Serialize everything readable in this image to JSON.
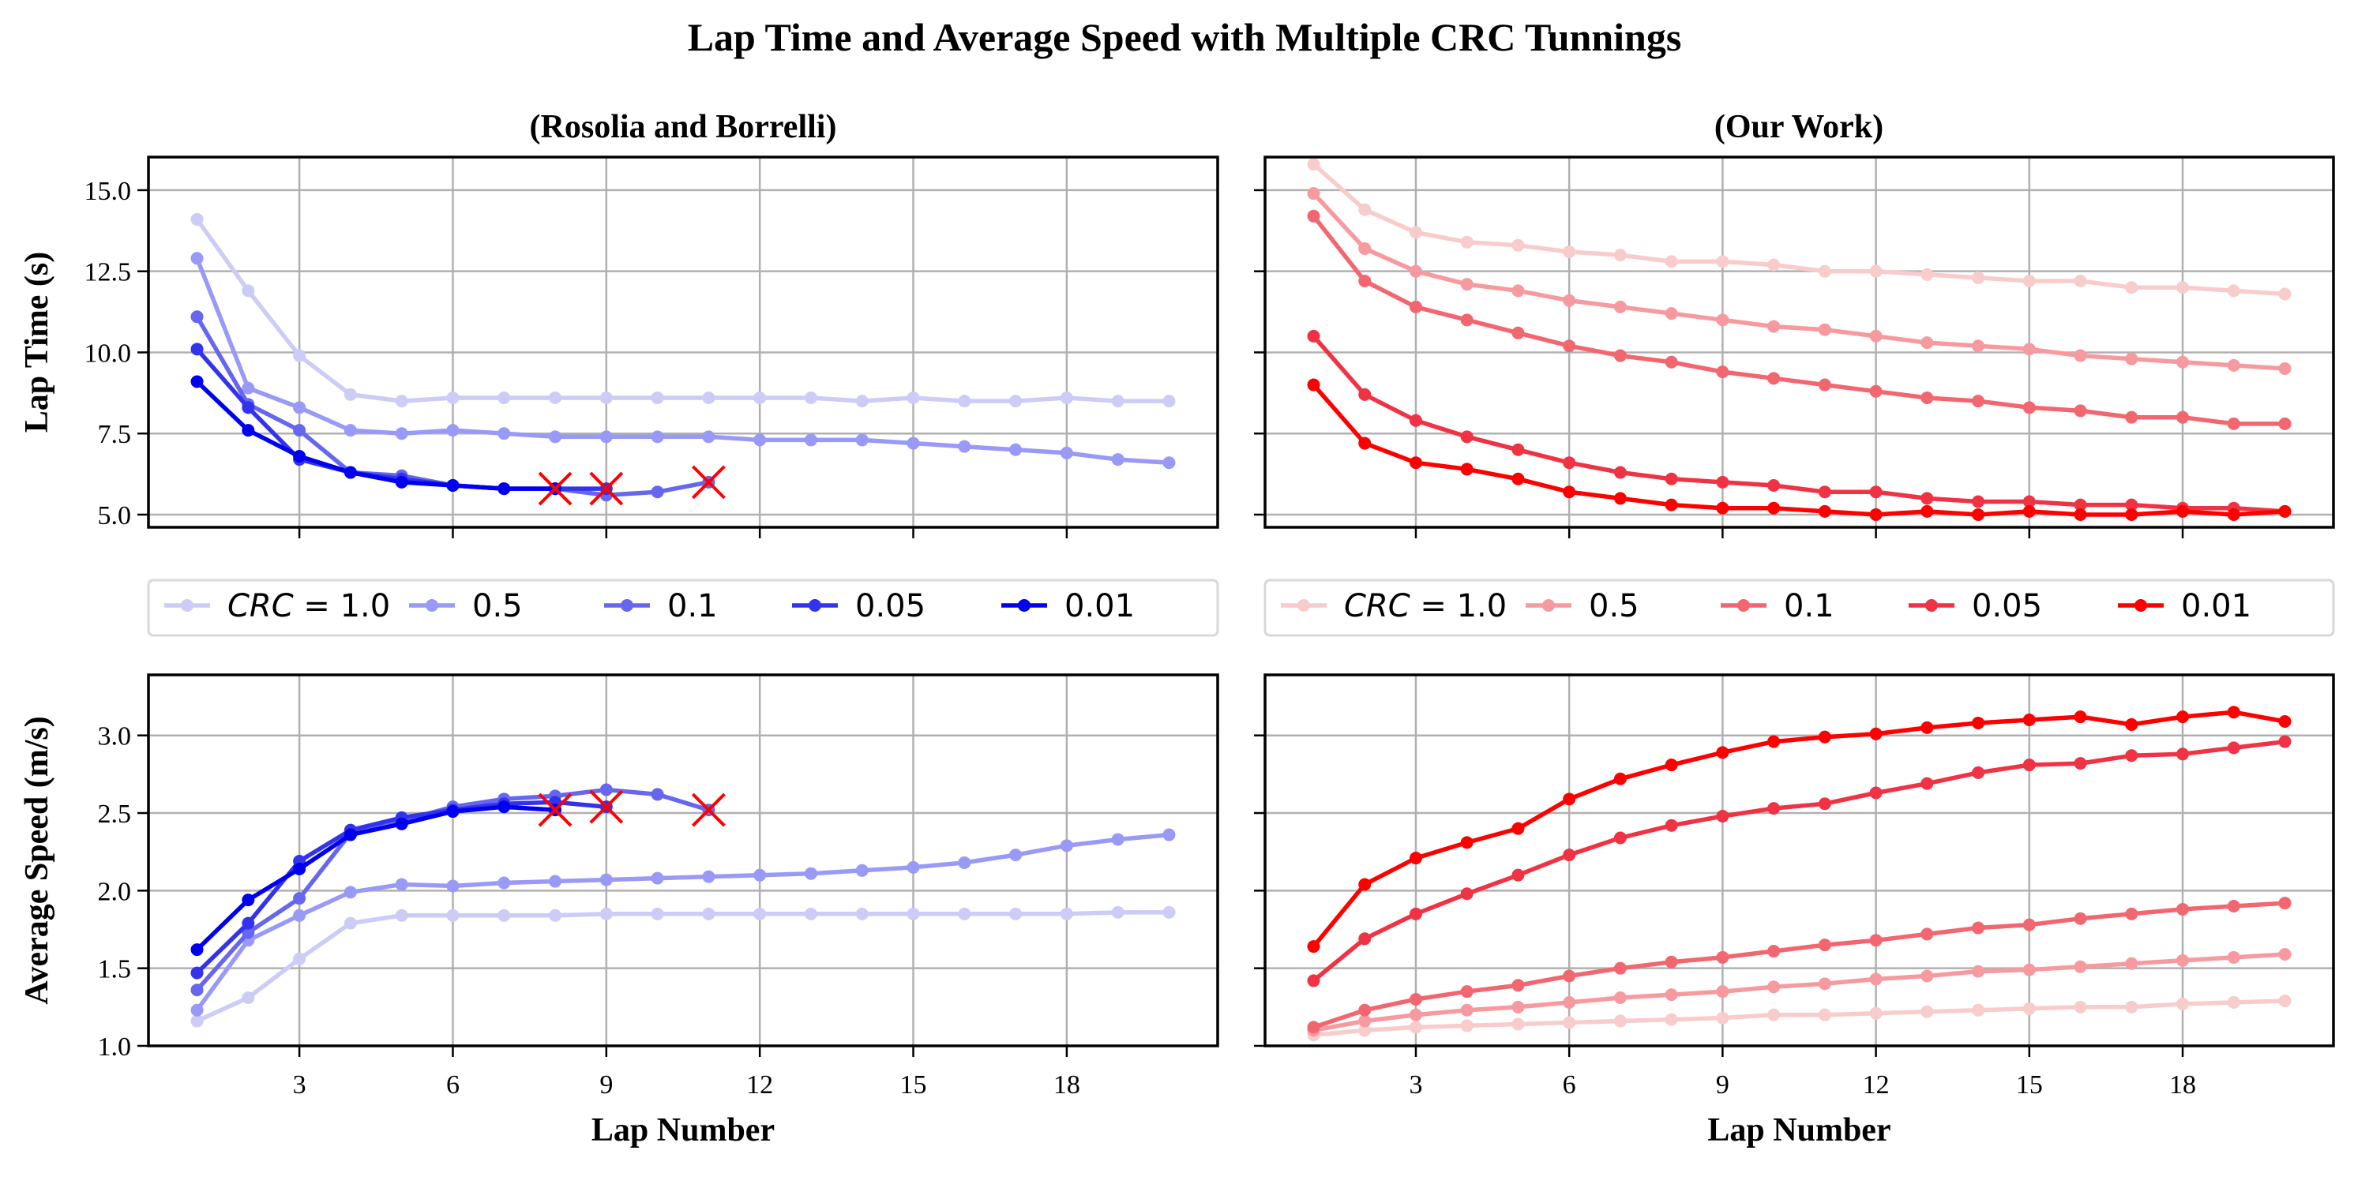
{
  "figure": {
    "suptitle": "Lap Time and Average Speed with Multiple CRC Tunnings",
    "left_column_title": "(Rosolia and Borrelli)",
    "right_column_title": "(Our Work)"
  },
  "chart_data": [
    {
      "id": "left-top",
      "type": "line",
      "title": "(Rosolia and Borrelli)",
      "xlabel": "",
      "ylabel": "Lap Time (s)",
      "xlim": [
        0.05,
        20.95
      ],
      "ylim": [
        4.61,
        16.02
      ],
      "xticks": [
        3,
        6,
        9,
        12,
        15,
        18
      ],
      "xtick_labels_shown": false,
      "yticks": [
        5.0,
        7.5,
        10.0,
        12.5,
        15.0
      ],
      "ytick_labels": [
        "5.0",
        "7.5",
        "10.0",
        "12.5",
        "15.0"
      ],
      "grid": true,
      "series": [
        {
          "name": "CRC = 1.0",
          "color": "#ccccf7",
          "x": [
            1,
            2,
            3,
            4,
            5,
            6,
            7,
            8,
            9,
            10,
            11,
            12,
            13,
            14,
            15,
            16,
            17,
            18,
            19,
            20
          ],
          "values": [
            14.1,
            11.9,
            9.9,
            8.7,
            8.5,
            8.6,
            8.6,
            8.6,
            8.6,
            8.6,
            8.6,
            8.6,
            8.6,
            8.5,
            8.6,
            8.5,
            8.5,
            8.6,
            8.5,
            8.5
          ]
        },
        {
          "name": "0.5",
          "color": "#9999f7",
          "x": [
            1,
            2,
            3,
            4,
            5,
            6,
            7,
            8,
            9,
            10,
            11,
            12,
            13,
            14,
            15,
            16,
            17,
            18,
            19,
            20
          ],
          "values": [
            12.9,
            8.9,
            8.3,
            7.6,
            7.5,
            7.6,
            7.5,
            7.4,
            7.4,
            7.4,
            7.4,
            7.3,
            7.3,
            7.3,
            7.2,
            7.1,
            7.0,
            6.9,
            6.7,
            6.6
          ]
        },
        {
          "name": "0.1",
          "color": "#6666ee",
          "x": [
            1,
            2,
            3,
            4,
            5,
            6,
            7,
            8,
            9,
            10,
            11
          ],
          "values": [
            11.1,
            8.4,
            7.6,
            6.3,
            6.2,
            5.9,
            5.8,
            5.8,
            5.6,
            5.7,
            6.0
          ],
          "failure_marker": true
        },
        {
          "name": "0.05",
          "color": "#3333ee",
          "x": [
            1,
            2,
            3,
            4,
            5,
            6,
            7,
            8,
            9
          ],
          "values": [
            10.1,
            8.3,
            6.7,
            6.3,
            6.1,
            5.9,
            5.8,
            5.8,
            5.8
          ],
          "failure_marker": true
        },
        {
          "name": "0.01",
          "color": "#0000ee",
          "x": [
            1,
            2,
            3,
            4,
            5,
            6,
            7,
            8
          ],
          "values": [
            9.1,
            7.6,
            6.8,
            6.3,
            6.0,
            5.9,
            5.8,
            5.8
          ],
          "failure_marker": true
        }
      ]
    },
    {
      "id": "right-top",
      "type": "line",
      "title": "(Our Work)",
      "xlabel": "",
      "ylabel": "",
      "xlim": [
        0.05,
        20.95
      ],
      "ylim": [
        4.61,
        16.02
      ],
      "xticks": [
        3,
        6,
        9,
        12,
        15,
        18
      ],
      "xtick_labels_shown": false,
      "yticks": [
        5.0,
        7.5,
        10.0,
        12.5,
        15.0
      ],
      "ytick_labels_shown": false,
      "grid": true,
      "series": [
        {
          "name": "CRC = 1.0",
          "color": "#f9cccc",
          "x": [
            1,
            2,
            3,
            4,
            5,
            6,
            7,
            8,
            9,
            10,
            11,
            12,
            13,
            14,
            15,
            16,
            17,
            18,
            19,
            20
          ],
          "values": [
            15.8,
            14.4,
            13.7,
            13.4,
            13.3,
            13.1,
            13.0,
            12.8,
            12.8,
            12.7,
            12.5,
            12.5,
            12.4,
            12.3,
            12.2,
            12.2,
            12.0,
            12.0,
            11.9,
            11.8
          ]
        },
        {
          "name": "0.5",
          "color": "#f79aa0",
          "x": [
            1,
            2,
            3,
            4,
            5,
            6,
            7,
            8,
            9,
            10,
            11,
            12,
            13,
            14,
            15,
            16,
            17,
            18,
            19,
            20
          ],
          "values": [
            14.9,
            13.2,
            12.5,
            12.1,
            11.9,
            11.6,
            11.4,
            11.2,
            11.0,
            10.8,
            10.7,
            10.5,
            10.3,
            10.2,
            10.1,
            9.9,
            9.8,
            9.7,
            9.6,
            9.5
          ]
        },
        {
          "name": "0.1",
          "color": "#f26670",
          "x": [
            1,
            2,
            3,
            4,
            5,
            6,
            7,
            8,
            9,
            10,
            11,
            12,
            13,
            14,
            15,
            16,
            17,
            18,
            19,
            20
          ],
          "values": [
            14.2,
            12.2,
            11.4,
            11.0,
            10.6,
            10.2,
            9.9,
            9.7,
            9.4,
            9.2,
            9.0,
            8.8,
            8.6,
            8.5,
            8.3,
            8.2,
            8.0,
            8.0,
            7.8,
            7.8
          ]
        },
        {
          "name": "0.05",
          "color": "#f03344",
          "x": [
            1,
            2,
            3,
            4,
            5,
            6,
            7,
            8,
            9,
            10,
            11,
            12,
            13,
            14,
            15,
            16,
            17,
            18,
            19,
            20
          ],
          "values": [
            10.5,
            8.7,
            7.9,
            7.4,
            7.0,
            6.6,
            6.3,
            6.1,
            6.0,
            5.9,
            5.7,
            5.7,
            5.5,
            5.4,
            5.4,
            5.3,
            5.3,
            5.2,
            5.2,
            5.1
          ]
        },
        {
          "name": "0.01",
          "color": "#ff0000",
          "x": [
            1,
            2,
            3,
            4,
            5,
            6,
            7,
            8,
            9,
            10,
            11,
            12,
            13,
            14,
            15,
            16,
            17,
            18,
            19,
            20
          ],
          "values": [
            9.0,
            7.2,
            6.6,
            6.4,
            6.1,
            5.7,
            5.5,
            5.3,
            5.2,
            5.2,
            5.1,
            5.0,
            5.1,
            5.0,
            5.1,
            5.0,
            5.0,
            5.1,
            5.0,
            5.1
          ]
        }
      ]
    },
    {
      "id": "left-bottom",
      "type": "line",
      "title": "",
      "xlabel": "Lap Number",
      "ylabel": "Average Speed (m/s)",
      "xlim": [
        0.05,
        20.95
      ],
      "ylim": [
        1.0,
        3.39
      ],
      "xticks": [
        3,
        6,
        9,
        12,
        15,
        18
      ],
      "xtick_labels": [
        "3",
        "6",
        "9",
        "12",
        "15",
        "18"
      ],
      "yticks": [
        1.0,
        1.5,
        2.0,
        2.5,
        3.0
      ],
      "ytick_labels": [
        "1.0",
        "1.5",
        "2.0",
        "2.5",
        "3.0"
      ],
      "grid": true,
      "series": [
        {
          "name": "CRC = 1.0",
          "color": "#ccccf7",
          "x": [
            1,
            2,
            3,
            4,
            5,
            6,
            7,
            8,
            9,
            10,
            11,
            12,
            13,
            14,
            15,
            16,
            17,
            18,
            19,
            20
          ],
          "values": [
            1.16,
            1.31,
            1.56,
            1.79,
            1.84,
            1.84,
            1.84,
            1.84,
            1.85,
            1.85,
            1.85,
            1.85,
            1.85,
            1.85,
            1.85,
            1.85,
            1.85,
            1.85,
            1.86,
            1.86
          ]
        },
        {
          "name": "0.5",
          "color": "#9999f7",
          "x": [
            1,
            2,
            3,
            4,
            5,
            6,
            7,
            8,
            9,
            10,
            11,
            12,
            13,
            14,
            15,
            16,
            17,
            18,
            19,
            20
          ],
          "values": [
            1.23,
            1.68,
            1.84,
            1.99,
            2.04,
            2.03,
            2.05,
            2.06,
            2.07,
            2.08,
            2.09,
            2.1,
            2.11,
            2.13,
            2.15,
            2.18,
            2.23,
            2.29,
            2.33,
            2.36
          ]
        },
        {
          "name": "0.1",
          "color": "#6666ee",
          "x": [
            1,
            2,
            3,
            4,
            5,
            6,
            7,
            8,
            9,
            10,
            11
          ],
          "values": [
            1.36,
            1.73,
            1.95,
            2.37,
            2.45,
            2.54,
            2.59,
            2.61,
            2.65,
            2.62,
            2.52
          ],
          "failure_marker": true
        },
        {
          "name": "0.05",
          "color": "#3333ee",
          "x": [
            1,
            2,
            3,
            4,
            5,
            6,
            7,
            8,
            9
          ],
          "values": [
            1.47,
            1.79,
            2.19,
            2.39,
            2.47,
            2.52,
            2.56,
            2.57,
            2.54
          ],
          "failure_marker": true
        },
        {
          "name": "0.01",
          "color": "#0000ee",
          "x": [
            1,
            2,
            3,
            4,
            5,
            6,
            7,
            8
          ],
          "values": [
            1.62,
            1.94,
            2.14,
            2.36,
            2.43,
            2.51,
            2.54,
            2.52
          ],
          "failure_marker": true
        }
      ]
    },
    {
      "id": "right-bottom",
      "type": "line",
      "title": "",
      "xlabel": "Lap Number",
      "ylabel": "",
      "xlim": [
        0.05,
        20.95
      ],
      "ylim": [
        1.0,
        3.39
      ],
      "xticks": [
        3,
        6,
        9,
        12,
        15,
        18
      ],
      "xtick_labels": [
        "3",
        "6",
        "9",
        "12",
        "15",
        "18"
      ],
      "yticks": [
        1.0,
        1.5,
        2.0,
        2.5,
        3.0
      ],
      "ytick_labels_shown": false,
      "grid": true,
      "series": [
        {
          "name": "CRC = 1.0",
          "color": "#f9cccc",
          "x": [
            1,
            2,
            3,
            4,
            5,
            6,
            7,
            8,
            9,
            10,
            11,
            12,
            13,
            14,
            15,
            16,
            17,
            18,
            19,
            20
          ],
          "values": [
            1.07,
            1.1,
            1.12,
            1.13,
            1.14,
            1.15,
            1.16,
            1.17,
            1.18,
            1.2,
            1.2,
            1.21,
            1.22,
            1.23,
            1.24,
            1.25,
            1.25,
            1.27,
            1.28,
            1.29
          ]
        },
        {
          "name": "0.5",
          "color": "#f79aa0",
          "x": [
            1,
            2,
            3,
            4,
            5,
            6,
            7,
            8,
            9,
            10,
            11,
            12,
            13,
            14,
            15,
            16,
            17,
            18,
            19,
            20
          ],
          "values": [
            1.1,
            1.16,
            1.2,
            1.23,
            1.25,
            1.28,
            1.31,
            1.33,
            1.35,
            1.38,
            1.4,
            1.43,
            1.45,
            1.48,
            1.49,
            1.51,
            1.53,
            1.55,
            1.57,
            1.59
          ]
        },
        {
          "name": "0.1",
          "color": "#f26670",
          "x": [
            1,
            2,
            3,
            4,
            5,
            6,
            7,
            8,
            9,
            10,
            11,
            12,
            13,
            14,
            15,
            16,
            17,
            18,
            19,
            20
          ],
          "values": [
            1.12,
            1.23,
            1.3,
            1.35,
            1.39,
            1.45,
            1.5,
            1.54,
            1.57,
            1.61,
            1.65,
            1.68,
            1.72,
            1.76,
            1.78,
            1.82,
            1.85,
            1.88,
            1.9,
            1.92
          ]
        },
        {
          "name": "0.05",
          "color": "#f03344",
          "x": [
            1,
            2,
            3,
            4,
            5,
            6,
            7,
            8,
            9,
            10,
            11,
            12,
            13,
            14,
            15,
            16,
            17,
            18,
            19,
            20
          ],
          "values": [
            1.42,
            1.69,
            1.85,
            1.98,
            2.1,
            2.23,
            2.34,
            2.42,
            2.48,
            2.53,
            2.56,
            2.63,
            2.69,
            2.76,
            2.81,
            2.82,
            2.87,
            2.88,
            2.92,
            2.96
          ]
        },
        {
          "name": "0.01",
          "color": "#ff0000",
          "x": [
            1,
            2,
            3,
            4,
            5,
            6,
            7,
            8,
            9,
            10,
            11,
            12,
            13,
            14,
            15,
            16,
            17,
            18,
            19,
            20
          ],
          "values": [
            1.64,
            2.04,
            2.21,
            2.31,
            2.4,
            2.59,
            2.72,
            2.81,
            2.89,
            2.96,
            2.99,
            3.01,
            3.05,
            3.08,
            3.1,
            3.12,
            3.07,
            3.12,
            3.15,
            3.09
          ]
        }
      ]
    }
  ],
  "legends": [
    {
      "id": "legend-left",
      "placement": "between-left-panels",
      "entries": [
        {
          "prefix_italic": "CRC",
          "label": " = 1.0",
          "color": "#ccccf7"
        },
        {
          "label": "0.5",
          "color": "#9999f7"
        },
        {
          "label": "0.1",
          "color": "#6666ee"
        },
        {
          "label": "0.05",
          "color": "#3333ee"
        },
        {
          "label": "0.01",
          "color": "#0000ee"
        }
      ]
    },
    {
      "id": "legend-right",
      "placement": "between-right-panels",
      "entries": [
        {
          "prefix_italic": "CRC",
          "label": " = 1.0",
          "color": "#f9cccc"
        },
        {
          "label": "0.5",
          "color": "#f79aa0"
        },
        {
          "label": "0.1",
          "color": "#f26670"
        },
        {
          "label": "0.05",
          "color": "#f03344"
        },
        {
          "label": "0.01",
          "color": "#ff0000"
        }
      ]
    }
  ],
  "failure_marker_color": "#ff0000"
}
